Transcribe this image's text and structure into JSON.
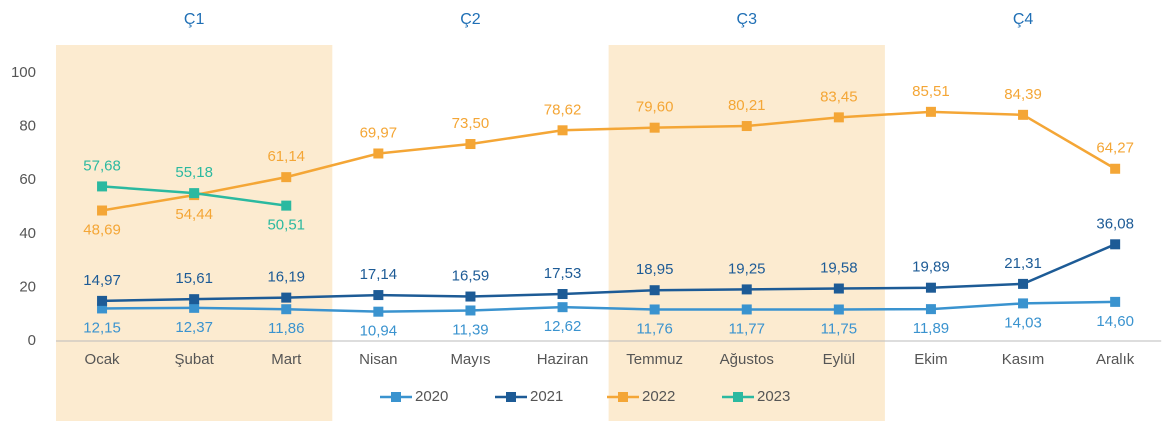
{
  "chart_data": {
    "type": "line",
    "categories": [
      "Ocak",
      "Şubat",
      "Mart",
      "Nisan",
      "Mayıs",
      "Haziran",
      "Temmuz",
      "Ağustos",
      "Eylül",
      "Ekim",
      "Kasım",
      "Aralık"
    ],
    "quarters": [
      {
        "label": "Ç1",
        "shaded": true
      },
      {
        "label": "Ç2",
        "shaded": false
      },
      {
        "label": "Ç3",
        "shaded": true
      },
      {
        "label": "Ç4",
        "shaded": false
      }
    ],
    "ylim": [
      0,
      100
    ],
    "yticks": [
      0,
      20,
      40,
      60,
      80,
      100
    ],
    "grid": false,
    "legend": "bottom",
    "series": [
      {
        "name": "2020",
        "color": "#3a93cf",
        "values": [
          12.15,
          12.37,
          11.86,
          10.94,
          11.39,
          12.62,
          11.76,
          11.77,
          11.75,
          11.89,
          14.03,
          14.6
        ],
        "value_labels": [
          "12,15",
          "12,37",
          "11,86",
          "10,94",
          "11,39",
          "12,62",
          "11,76",
          "11,77",
          "11,75",
          "11,89",
          "14,03",
          "14,60"
        ]
      },
      {
        "name": "2021",
        "color": "#1d5b96",
        "values": [
          14.97,
          15.61,
          16.19,
          17.14,
          16.59,
          17.53,
          18.95,
          19.25,
          19.58,
          19.89,
          21.31,
          36.08
        ],
        "value_labels": [
          "14,97",
          "15,61",
          "16,19",
          "17,14",
          "16,59",
          "17,53",
          "18,95",
          "19,25",
          "19,58",
          "19,89",
          "21,31",
          "36,08"
        ]
      },
      {
        "name": "2022",
        "color": "#f4a636",
        "values": [
          48.69,
          54.44,
          61.14,
          69.97,
          73.5,
          78.62,
          79.6,
          80.21,
          83.45,
          85.51,
          84.39,
          64.27
        ],
        "value_labels": [
          "48,69",
          "54,44",
          "61,14",
          "69,97",
          "73,50",
          "78,62",
          "79,60",
          "80,21",
          "83,45",
          "85,51",
          "84,39",
          "64,27"
        ]
      },
      {
        "name": "2023",
        "color": "#2bb9a0",
        "values": [
          57.68,
          55.18,
          50.51,
          null,
          null,
          null,
          null,
          null,
          null,
          null,
          null,
          null
        ],
        "value_labels": [
          "57,68",
          "55,18",
          "50,51",
          null,
          null,
          null,
          null,
          null,
          null,
          null,
          null,
          null
        ]
      }
    ]
  }
}
